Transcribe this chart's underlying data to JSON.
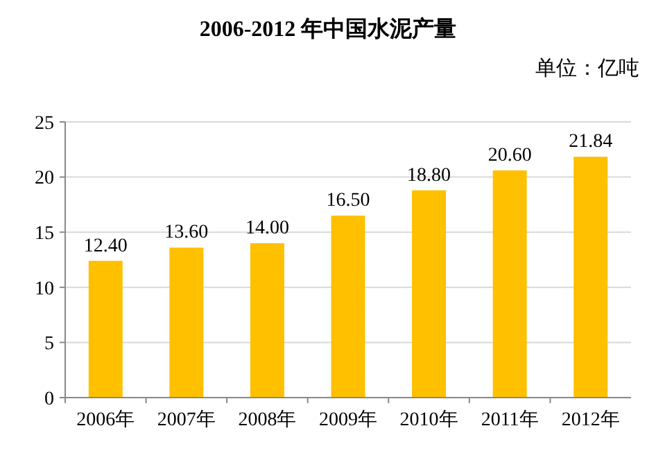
{
  "chart_data": {
    "type": "bar",
    "title": "2006-2012 年中国水泥产量",
    "subtitle": "单位：亿吨",
    "categories": [
      "2006年",
      "2007年",
      "2008年",
      "2009年",
      "2010年",
      "2011年",
      "2012年"
    ],
    "values": [
      12.4,
      13.6,
      14.0,
      16.5,
      18.8,
      20.6,
      21.84
    ],
    "value_labels": [
      "12.40",
      "13.60",
      "14.00",
      "16.50",
      "18.80",
      "20.60",
      "21.84"
    ],
    "color": "#ffc000",
    "ylim": [
      0,
      25
    ],
    "yticks": [
      0,
      5,
      10,
      15,
      20,
      25
    ],
    "grid": "y"
  }
}
